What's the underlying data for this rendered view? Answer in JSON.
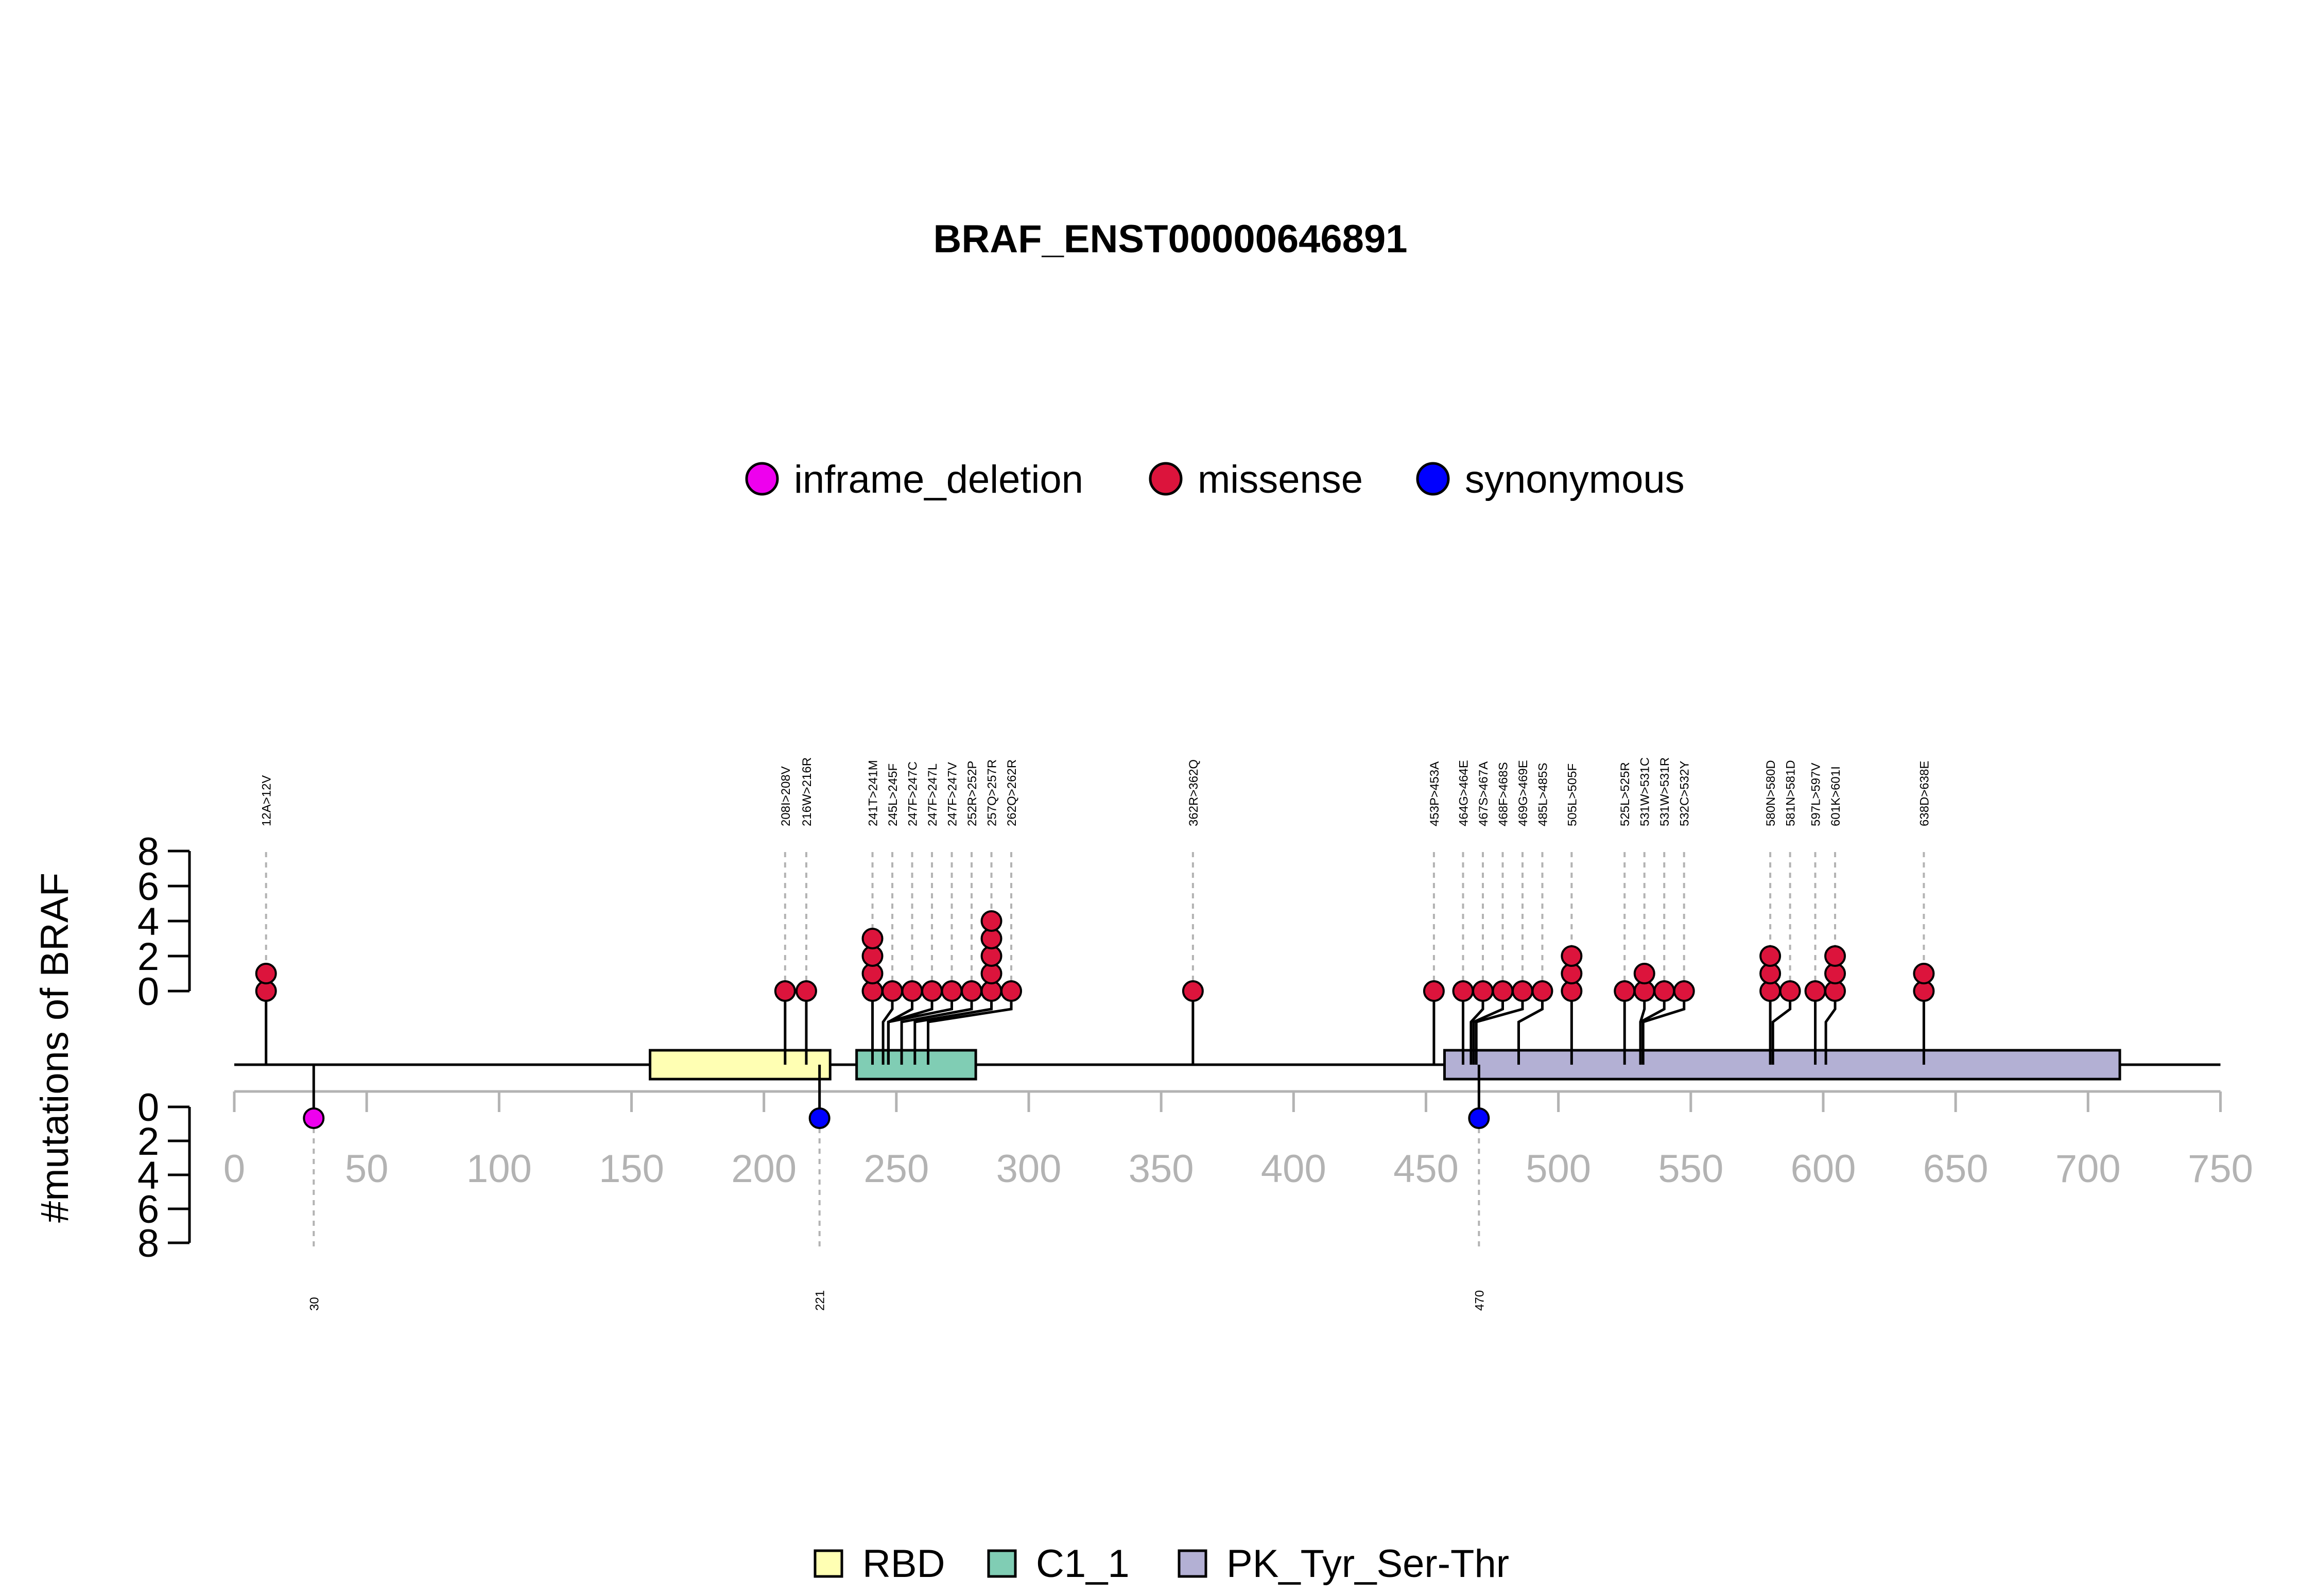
{
  "chart_data": {
    "type": "lollipop",
    "title": "BRAF_ENST00000646891",
    "ylabel": "#mutations of BRAF",
    "xlim": [
      0,
      750
    ],
    "x_ticks": [
      0,
      50,
      100,
      150,
      200,
      250,
      300,
      350,
      400,
      450,
      500,
      550,
      600,
      650,
      700,
      750
    ],
    "y_ticks": [
      0,
      2,
      4,
      6,
      8
    ],
    "ylim": [
      0,
      8
    ],
    "protein_length": 750,
    "colors": {
      "inframe_deletion": "#ee00ee",
      "missense": "#dc143c",
      "synonymous": "#0000ff",
      "axis_tick": "#b3b3b3",
      "guide_line": "#b3b3b3",
      "RBD": "#ffffb3",
      "C1_1": "#80cdb4",
      "PK_Tyr_Ser-Thr": "#b3b0d4"
    },
    "variant_legend": [
      {
        "label": "inframe_deletion",
        "color": "#ee00ee"
      },
      {
        "label": "missense",
        "color": "#dc143c"
      },
      {
        "label": "synonymous",
        "color": "#0000ff"
      }
    ],
    "domain_legend": [
      {
        "label": "RBD",
        "color": "#ffffb3"
      },
      {
        "label": "C1_1",
        "color": "#80cdb4"
      },
      {
        "label": "PK_Tyr_Ser-Thr",
        "color": "#b3b0d4"
      }
    ],
    "domains": [
      {
        "name": "RBD",
        "start": 157,
        "end": 225
      },
      {
        "name": "C1_1",
        "start": 235,
        "end": 280
      },
      {
        "name": "PK_Tyr_Ser-Thr",
        "start": 457,
        "end": 712
      }
    ],
    "mutations_top": [
      {
        "pos": 12,
        "label": "12A>12V",
        "count": 2,
        "type": "missense"
      },
      {
        "pos": 208,
        "label": "208I>208V",
        "count": 1,
        "type": "missense"
      },
      {
        "pos": 216,
        "label": "216W>216R",
        "count": 1,
        "type": "missense"
      },
      {
        "pos": 241,
        "label": "241T>241M",
        "count": 4,
        "type": "missense"
      },
      {
        "pos": 245,
        "label": "245L>245F",
        "count": 1,
        "type": "missense"
      },
      {
        "pos": 247,
        "label": "247F>247C",
        "count": 1,
        "type": "missense"
      },
      {
        "pos": 247,
        "label": "247F>247L",
        "count": 1,
        "type": "missense"
      },
      {
        "pos": 247,
        "label": "247F>247V",
        "count": 1,
        "type": "missense"
      },
      {
        "pos": 252,
        "label": "252R>252P",
        "count": 1,
        "type": "missense"
      },
      {
        "pos": 257,
        "label": "257Q>257R",
        "count": 5,
        "type": "missense"
      },
      {
        "pos": 262,
        "label": "262Q>262R",
        "count": 1,
        "type": "missense"
      },
      {
        "pos": 362,
        "label": "362R>362Q",
        "count": 1,
        "type": "missense"
      },
      {
        "pos": 453,
        "label": "453P>453A",
        "count": 1,
        "type": "missense"
      },
      {
        "pos": 464,
        "label": "464G>464E",
        "count": 1,
        "type": "missense"
      },
      {
        "pos": 467,
        "label": "467S>467A",
        "count": 1,
        "type": "missense"
      },
      {
        "pos": 468,
        "label": "468F>468S",
        "count": 1,
        "type": "missense"
      },
      {
        "pos": 469,
        "label": "469G>469E",
        "count": 1,
        "type": "missense"
      },
      {
        "pos": 485,
        "label": "485L>485S",
        "count": 1,
        "type": "missense"
      },
      {
        "pos": 505,
        "label": "505L>505F",
        "count": 3,
        "type": "missense"
      },
      {
        "pos": 525,
        "label": "525L>525R",
        "count": 1,
        "type": "missense"
      },
      {
        "pos": 531,
        "label": "531W>531C",
        "count": 2,
        "type": "missense"
      },
      {
        "pos": 531,
        "label": "531W>531R",
        "count": 1,
        "type": "missense"
      },
      {
        "pos": 532,
        "label": "532C>532Y",
        "count": 1,
        "type": "missense"
      },
      {
        "pos": 580,
        "label": "580N>580D",
        "count": 3,
        "type": "missense"
      },
      {
        "pos": 581,
        "label": "581N>581D",
        "count": 1,
        "type": "missense"
      },
      {
        "pos": 597,
        "label": "597L>597V",
        "count": 1,
        "type": "missense"
      },
      {
        "pos": 601,
        "label": "601K>601I",
        "count": 3,
        "type": "missense"
      },
      {
        "pos": 638,
        "label": "638D>638E",
        "count": 2,
        "type": "missense"
      }
    ],
    "mutations_bottom": [
      {
        "pos": 30,
        "label": "30",
        "count": 1,
        "type": "inframe_deletion"
      },
      {
        "pos": 221,
        "label": "221",
        "count": 1,
        "type": "synonymous"
      },
      {
        "pos": 470,
        "label": "470",
        "count": 1,
        "type": "synonymous"
      }
    ]
  }
}
